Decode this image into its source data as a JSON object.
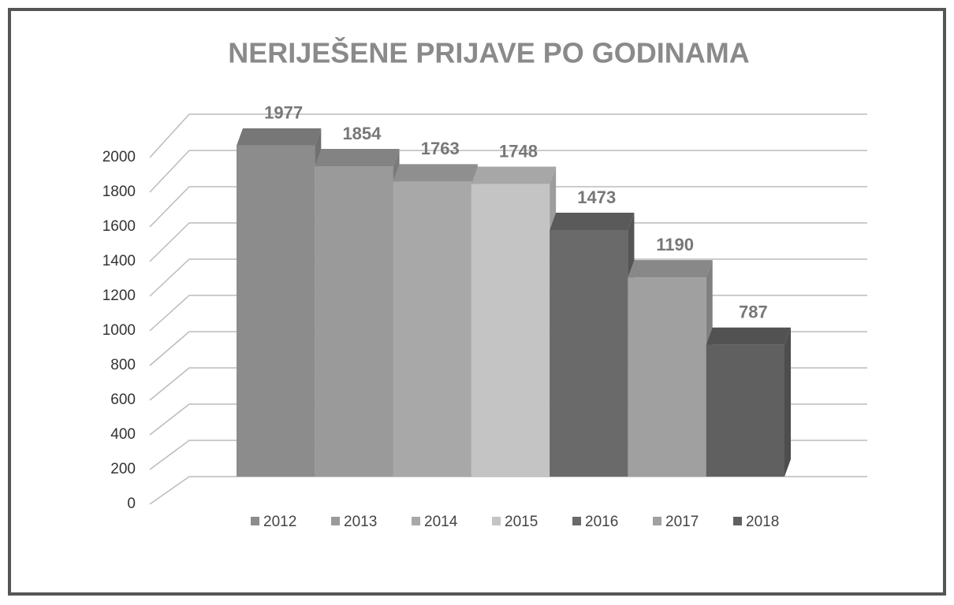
{
  "chart_data": {
    "type": "bar3d",
    "title": "NERIJEŠENE PRIJAVE PO GODINAMA",
    "series": [
      {
        "name": "2012",
        "color": "#8c8c8c",
        "values": [
          1977
        ]
      },
      {
        "name": "2013",
        "color": "#9a9a9a",
        "values": [
          1854
        ]
      },
      {
        "name": "2014",
        "color": "#a8a8a8",
        "values": [
          1763
        ]
      },
      {
        "name": "2015",
        "color": "#c4c4c4",
        "values": [
          1748
        ]
      },
      {
        "name": "2016",
        "color": "#6a6a6a",
        "values": [
          1473
        ]
      },
      {
        "name": "2017",
        "color": "#a0a0a0",
        "values": [
          1190
        ]
      },
      {
        "name": "2018",
        "color": "#606060",
        "values": [
          787
        ]
      }
    ],
    "ylim": [
      0,
      2000
    ],
    "yticks": [
      0,
      200,
      400,
      600,
      800,
      1000,
      1200,
      1400,
      1600,
      1800,
      2000
    ],
    "grid": true,
    "legend": "bottom"
  }
}
